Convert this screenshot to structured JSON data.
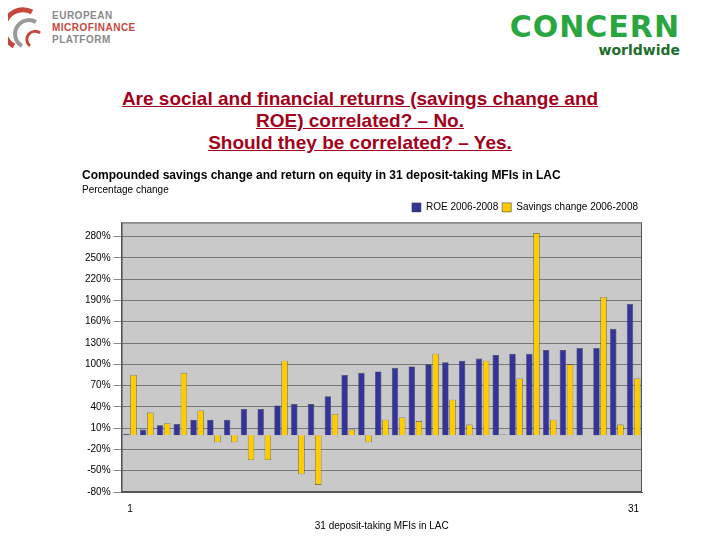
{
  "header": {
    "logo_left": [
      "EUROPEAN",
      "MICROFINANCE",
      "PLATFORM"
    ],
    "logo_right": [
      "CONCERN",
      "worldwide"
    ],
    "title": [
      "Are social and financial returns (savings change and",
      "ROE) correlated? – No.",
      "Should they be correlated? – Yes."
    ]
  },
  "chart_data": {
    "type": "bar",
    "title": "Compounded savings change and return on equity in 31 deposit-taking MFIs in LAC",
    "subtitle": "Percentage change",
    "xlabel": "31 deposit-taking MFIs in LAC",
    "categories": [
      "1",
      null,
      null,
      null,
      null,
      null,
      null,
      null,
      null,
      null,
      null,
      null,
      null,
      null,
      null,
      null,
      null,
      null,
      null,
      null,
      null,
      null,
      null,
      null,
      null,
      null,
      null,
      null,
      null,
      null,
      "31"
    ],
    "series": [
      {
        "name": "ROE 2006-2008",
        "color": "#333399",
        "values": [
          2,
          8,
          14,
          16,
          22,
          22,
          22,
          37,
          37,
          42,
          44,
          44,
          55,
          85,
          88,
          90,
          95,
          97,
          100,
          103,
          105,
          108,
          113,
          115,
          115,
          120,
          120,
          123,
          123,
          150,
          185
        ]
      },
      {
        "name": "Savings change 2006-2008",
        "color": "#ffcc00",
        "values": [
          85,
          32,
          17,
          88,
          35,
          -10,
          -10,
          -35,
          -35,
          105,
          -55,
          -70,
          30,
          8,
          -10,
          22,
          25,
          20,
          115,
          50,
          15,
          105,
          1,
          80,
          285,
          22,
          100,
          0,
          195,
          15,
          80
        ]
      }
    ],
    "ylim": [
      -80,
      300
    ],
    "yticks": [
      {
        "value": -80,
        "label": "-80%"
      },
      {
        "value": -50,
        "label": "-50%"
      },
      {
        "value": -20,
        "label": "-20%"
      },
      {
        "value": 10,
        "label": "10%"
      },
      {
        "value": 40,
        "label": "40%"
      },
      {
        "value": 70,
        "label": "70%"
      },
      {
        "value": 100,
        "label": "100%"
      },
      {
        "value": 130,
        "label": "130%"
      },
      {
        "value": 160,
        "label": "160%"
      },
      {
        "value": 190,
        "label": "190%"
      },
      {
        "value": 220,
        "label": "220%"
      },
      {
        "value": 250,
        "label": "250%"
      },
      {
        "value": 280,
        "label": "280%"
      }
    ],
    "grid": true,
    "legend": "top-right"
  }
}
